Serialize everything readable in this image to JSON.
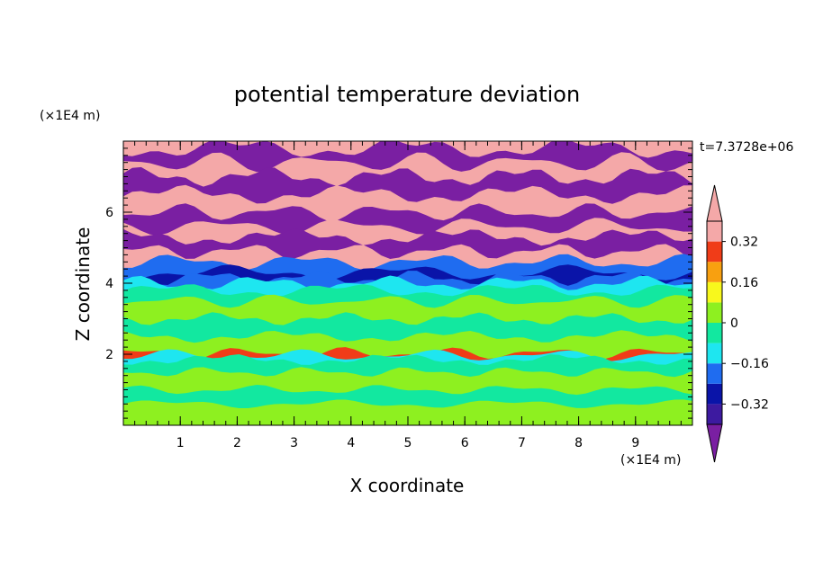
{
  "chart_data": {
    "type": "heatmap",
    "title": "potential temperature deviation",
    "xlabel": "X coordinate",
    "ylabel": "Z coordinate",
    "x_unit": "(×1E4 m)",
    "y_unit": "(×1E4 m)",
    "time_label": "t=7.3728e+06",
    "xlim": [
      0,
      10
    ],
    "ylim": [
      0,
      8
    ],
    "x_ticks": [
      1,
      2,
      3,
      4,
      5,
      6,
      7,
      8,
      9
    ],
    "y_ticks": [
      2,
      4,
      6
    ],
    "colorbar": {
      "levels": [
        -0.4,
        -0.32,
        -0.24,
        -0.16,
        -0.08,
        0,
        0.08,
        0.16,
        0.24,
        0.32,
        0.4
      ],
      "tick_labels": [
        "0.32",
        "0.16",
        "0",
        "−0.16",
        "−0.32"
      ],
      "tick_values": [
        0.32,
        0.16,
        0,
        -0.16,
        -0.32
      ],
      "colors": [
        "#7a1fa2",
        "#3d1aa0",
        "#0a14a8",
        "#1f6cf0",
        "#1ee6f0",
        "#12e8a0",
        "#8ef020",
        "#f8f81c",
        "#f8a010",
        "#f03c18",
        "#f4a8a8"
      ]
    },
    "bands": [
      {
        "z0": 0.0,
        "z1": 0.6,
        "value": 0.05
      },
      {
        "z0": 0.6,
        "z1": 1.0,
        "value": -0.02
      },
      {
        "z0": 1.0,
        "z1": 1.5,
        "value": 0.05
      },
      {
        "z0": 1.5,
        "z1": 1.85,
        "value": -0.02
      },
      {
        "z0": 1.85,
        "z1": 1.97,
        "value": -0.1
      },
      {
        "z0": 1.97,
        "z1": 2.03,
        "value": 0.3
      },
      {
        "z0": 2.03,
        "z1": 2.5,
        "value": 0.05
      },
      {
        "z0": 2.5,
        "z1": 3.0,
        "value": -0.02
      },
      {
        "z0": 3.0,
        "z1": 3.5,
        "value": 0.05
      },
      {
        "z0": 3.5,
        "z1": 3.8,
        "value": -0.05
      },
      {
        "z0": 3.8,
        "z1": 4.0,
        "value": -0.12
      },
      {
        "z0": 4.0,
        "z1": 4.15,
        "value": -0.2
      },
      {
        "z0": 4.15,
        "z1": 4.3,
        "value": -0.3
      },
      {
        "z0": 4.3,
        "z1": 4.6,
        "value": -0.2
      },
      {
        "z0": 4.6,
        "z1": 4.9,
        "value": 0.45
      },
      {
        "z0": 4.9,
        "z1": 5.3,
        "value": -0.45
      },
      {
        "z0": 5.3,
        "z1": 5.6,
        "value": 0.45
      },
      {
        "z0": 5.6,
        "z1": 6.0,
        "value": -0.45
      },
      {
        "z0": 6.0,
        "z1": 6.5,
        "value": 0.45
      },
      {
        "z0": 6.5,
        "z1": 7.0,
        "value": -0.45
      },
      {
        "z0": 7.0,
        "z1": 7.4,
        "value": 0.45
      },
      {
        "z0": 7.4,
        "z1": 7.8,
        "value": -0.45
      },
      {
        "z0": 7.8,
        "z1": 8.0,
        "value": 0.45
      }
    ]
  }
}
